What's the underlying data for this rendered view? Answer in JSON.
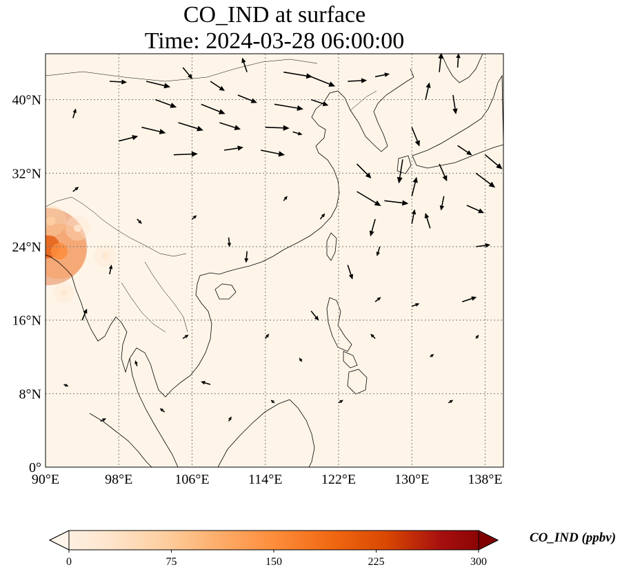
{
  "title_line1": "CO_IND at surface",
  "title_line2": "Time: 2024-03-28 06:00:00",
  "map": {
    "lon_range": [
      90,
      140
    ],
    "lat_range": [
      0,
      45
    ],
    "lon_ticks": [
      90,
      98,
      106,
      114,
      122,
      130,
      138
    ],
    "lat_ticks": [
      0,
      8,
      16,
      24,
      32,
      40
    ],
    "lon_tick_labels": [
      "90°E",
      "98°E",
      "106°E",
      "114°E",
      "122°E",
      "130°E",
      "138°E"
    ],
    "lat_tick_labels": [
      "0°",
      "8°N",
      "16°N",
      "24°N",
      "32°N",
      "40°N"
    ],
    "gridlines": true,
    "background_color": "#fef5e8",
    "coastline_color": "#000000"
  },
  "colorbar": {
    "label": "CO_IND (ppbv)",
    "min": 0,
    "max": 300,
    "ticks": [
      0,
      75,
      150,
      225,
      300
    ],
    "tick_labels": [
      "0",
      "75",
      "150",
      "225",
      "300"
    ],
    "colormap": [
      "#fff5eb",
      "#fee6ce",
      "#fdd0a2",
      "#fdae6b",
      "#fd8d3c",
      "#f16913",
      "#d94801",
      "#a60f0f",
      "#7f0000"
    ],
    "extend": "both"
  },
  "concentration_hotspots": [
    {
      "lon": 90.3,
      "lat": 24.0,
      "value": 230
    },
    {
      "lon": 91.5,
      "lat": 23.5,
      "value": 150
    },
    {
      "lon": 90.6,
      "lat": 26.8,
      "value": 60
    },
    {
      "lon": 93.5,
      "lat": 26.0,
      "value": 40
    },
    {
      "lon": 96.5,
      "lat": 23.0,
      "value": 30
    },
    {
      "lon": 92.0,
      "lat": 19.0,
      "value": 25
    }
  ],
  "wind_vectors": [
    {
      "lon": 97,
      "lat": 42,
      "u": 1.8,
      "v": -0.1
    },
    {
      "lon": 101,
      "lat": 42,
      "u": 2.5,
      "v": -0.6
    },
    {
      "lon": 105,
      "lat": 43.5,
      "u": 1.0,
      "v": -1.2
    },
    {
      "lon": 108,
      "lat": 42,
      "u": 1.5,
      "v": -1.0
    },
    {
      "lon": 112,
      "lat": 43,
      "u": -0.5,
      "v": 1.5
    },
    {
      "lon": 116,
      "lat": 43,
      "u": 3.0,
      "v": -0.5
    },
    {
      "lon": 119,
      "lat": 42.5,
      "u": 2.5,
      "v": -1.0
    },
    {
      "lon": 123,
      "lat": 42,
      "u": 2.0,
      "v": 0.1
    },
    {
      "lon": 126,
      "lat": 42.5,
      "u": 1.5,
      "v": 0.3
    },
    {
      "lon": 133,
      "lat": 43,
      "u": 0.2,
      "v": 2.0
    },
    {
      "lon": 135,
      "lat": 43.5,
      "u": 0.1,
      "v": 1.5
    },
    {
      "lon": 102,
      "lat": 40,
      "u": 2.2,
      "v": -0.8
    },
    {
      "lon": 107,
      "lat": 39.5,
      "u": 2.5,
      "v": -1.0
    },
    {
      "lon": 111,
      "lat": 40.5,
      "u": 2.0,
      "v": -0.8
    },
    {
      "lon": 115,
      "lat": 39.5,
      "u": 3.0,
      "v": -0.5
    },
    {
      "lon": 119,
      "lat": 40,
      "u": 1.8,
      "v": -0.6
    },
    {
      "lon": 131.5,
      "lat": 40,
      "u": 0.4,
      "v": 1.8
    },
    {
      "lon": 134.5,
      "lat": 40.5,
      "u": 0.3,
      "v": -2.0
    },
    {
      "lon": 100.5,
      "lat": 37,
      "u": 2.5,
      "v": -0.6
    },
    {
      "lon": 104.5,
      "lat": 37.5,
      "u": 2.6,
      "v": -0.8
    },
    {
      "lon": 109,
      "lat": 37.5,
      "u": 2.2,
      "v": -0.7
    },
    {
      "lon": 114,
      "lat": 37,
      "u": 2.5,
      "v": -0.1
    },
    {
      "lon": 117,
      "lat": 36.5,
      "u": 1.0,
      "v": -0.3
    },
    {
      "lon": 130,
      "lat": 37,
      "u": 0.8,
      "v": -2.0
    },
    {
      "lon": 135,
      "lat": 35,
      "u": 1.5,
      "v": -1.0
    },
    {
      "lon": 138,
      "lat": 34,
      "u": 1.8,
      "v": -1.5
    },
    {
      "lon": 98,
      "lat": 35.5,
      "u": 2.0,
      "v": 0.5
    },
    {
      "lon": 104,
      "lat": 34,
      "u": 2.5,
      "v": 0.1
    },
    {
      "lon": 109.5,
      "lat": 34.5,
      "u": 2.0,
      "v": 0.3
    },
    {
      "lon": 113.5,
      "lat": 34.5,
      "u": 2.5,
      "v": -0.5
    },
    {
      "lon": 124,
      "lat": 33,
      "u": 1.5,
      "v": -1.5
    },
    {
      "lon": 129,
      "lat": 33.5,
      "u": -0.4,
      "v": -2.5
    },
    {
      "lon": 133,
      "lat": 33,
      "u": 0.8,
      "v": -1.8
    },
    {
      "lon": 137,
      "lat": 32,
      "u": 2.0,
      "v": -1.5
    },
    {
      "lon": 124,
      "lat": 30,
      "u": 2.5,
      "v": -1.5
    },
    {
      "lon": 127,
      "lat": 29,
      "u": 2.5,
      "v": -0.3
    },
    {
      "lon": 130,
      "lat": 29.5,
      "u": 0.5,
      "v": 2.0
    },
    {
      "lon": 133.5,
      "lat": 29.5,
      "u": -0.3,
      "v": -1.5
    },
    {
      "lon": 136,
      "lat": 28.5,
      "u": 1.8,
      "v": -0.8
    },
    {
      "lon": 126,
      "lat": 27,
      "u": -0.5,
      "v": -1.8
    },
    {
      "lon": 130,
      "lat": 26.5,
      "u": 0.3,
      "v": 1.5
    },
    {
      "lon": 132,
      "lat": 26,
      "u": -0.5,
      "v": 1.6
    },
    {
      "lon": 110,
      "lat": 25,
      "u": 0.1,
      "v": -1.0
    },
    {
      "lon": 112,
      "lat": 23.5,
      "u": -0.1,
      "v": -1.2
    },
    {
      "lon": 123,
      "lat": 22,
      "u": 0.5,
      "v": -1.5
    },
    {
      "lon": 126.5,
      "lat": 24,
      "u": -0.3,
      "v": -1.0
    },
    {
      "lon": 137,
      "lat": 24,
      "u": 1.5,
      "v": 0.2
    },
    {
      "lon": 135.5,
      "lat": 18,
      "u": 1.5,
      "v": 0.5
    },
    {
      "lon": 97,
      "lat": 21,
      "u": 0.2,
      "v": 1.0
    },
    {
      "lon": 94,
      "lat": 16,
      "u": 0.5,
      "v": 1.2
    },
    {
      "lon": 108,
      "lat": 9,
      "u": -1.0,
      "v": 0.3
    },
    {
      "lon": 119,
      "lat": 17,
      "u": 0.8,
      "v": -1.0
    },
    {
      "lon": 126,
      "lat": 18,
      "u": 0.6,
      "v": 0.5
    },
    {
      "lon": 130,
      "lat": 17.5,
      "u": 0.8,
      "v": 0.3
    },
    {
      "lon": 92,
      "lat": 9,
      "u": 0.5,
      "v": -0.2
    },
    {
      "lon": 96,
      "lat": 5,
      "u": 0.6,
      "v": 0.3
    },
    {
      "lon": 100,
      "lat": 11,
      "u": -0.2,
      "v": 0.6
    },
    {
      "lon": 105,
      "lat": 14,
      "u": 0.6,
      "v": 0.4
    },
    {
      "lon": 114,
      "lat": 14,
      "u": 0.4,
      "v": 0.5
    },
    {
      "lon": 118,
      "lat": 11.5,
      "u": -0.3,
      "v": 0.4
    },
    {
      "lon": 122,
      "lat": 7,
      "u": 0.5,
      "v": 0.3
    },
    {
      "lon": 126,
      "lat": 14,
      "u": -0.5,
      "v": 0.5
    },
    {
      "lon": 132,
      "lat": 12,
      "u": 0.4,
      "v": 0.3
    },
    {
      "lon": 137,
      "lat": 14,
      "u": 0.3,
      "v": 0.4
    },
    {
      "lon": 103,
      "lat": 6,
      "u": -0.5,
      "v": 0.4
    },
    {
      "lon": 110,
      "lat": 5,
      "u": 0.3,
      "v": 0.5
    },
    {
      "lon": 115,
      "lat": 7,
      "u": -0.4,
      "v": 0.3
    },
    {
      "lon": 134,
      "lat": 7,
      "u": 0.5,
      "v": 0.3
    },
    {
      "lon": 93,
      "lat": 38,
      "u": 0.3,
      "v": 1.0
    },
    {
      "lon": 93,
      "lat": 30,
      "u": 0.6,
      "v": 0.5
    },
    {
      "lon": 100,
      "lat": 27,
      "u": 0.5,
      "v": -0.5
    },
    {
      "lon": 106,
      "lat": 27,
      "u": 0.5,
      "v": 0.4
    },
    {
      "lon": 116,
      "lat": 29,
      "u": 0.4,
      "v": 0.5
    },
    {
      "lon": 120,
      "lat": 27,
      "u": 0.5,
      "v": 0.6
    }
  ]
}
